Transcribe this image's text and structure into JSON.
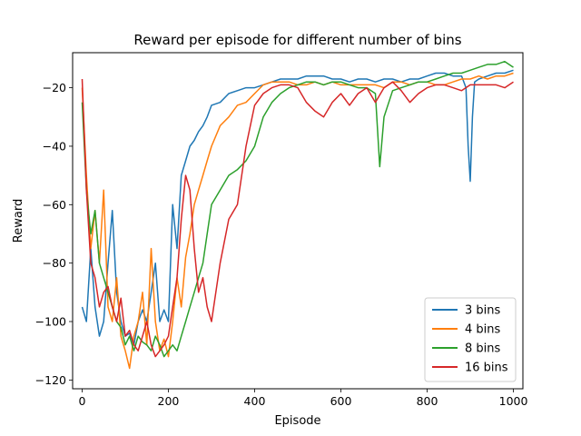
{
  "chart_data": {
    "type": "line",
    "title": "Reward per episode for different number of bins",
    "xlabel": "Episode",
    "ylabel": "Reward",
    "xlim": [
      -22,
      1022
    ],
    "ylim": [
      -123,
      -8
    ],
    "xticks": [
      0,
      200,
      400,
      600,
      800,
      1000
    ],
    "yticks": [
      -120,
      -100,
      -80,
      -60,
      -40,
      -20
    ],
    "grid": false,
    "legend_position": "lower-right",
    "series": [
      {
        "name": "3 bins",
        "color": "#1f77b4",
        "x": [
          0,
          10,
          20,
          30,
          40,
          50,
          60,
          70,
          80,
          90,
          100,
          110,
          120,
          130,
          140,
          150,
          160,
          170,
          180,
          190,
          200,
          210,
          220,
          230,
          240,
          250,
          260,
          270,
          280,
          290,
          300,
          320,
          340,
          360,
          380,
          400,
          420,
          440,
          460,
          480,
          500,
          520,
          540,
          560,
          580,
          600,
          620,
          640,
          660,
          680,
          700,
          720,
          740,
          760,
          780,
          800,
          820,
          840,
          860,
          880,
          890,
          895,
          900,
          905,
          910,
          920,
          940,
          960,
          980,
          1000
        ],
        "values": [
          -95,
          -100,
          -75,
          -95,
          -105,
          -100,
          -80,
          -62,
          -90,
          -100,
          -105,
          -104,
          -108,
          -100,
          -96,
          -100,
          -90,
          -80,
          -100,
          -96,
          -100,
          -60,
          -75,
          -50,
          -45,
          -40,
          -38,
          -35,
          -33,
          -30,
          -26,
          -25,
          -22,
          -21,
          -20,
          -20,
          -19,
          -18,
          -17,
          -17,
          -17,
          -16,
          -16,
          -16,
          -17,
          -17,
          -18,
          -17,
          -17,
          -18,
          -17,
          -17,
          -18,
          -17,
          -17,
          -16,
          -15,
          -15,
          -16,
          -16,
          -20,
          -40,
          -52,
          -30,
          -18,
          -17,
          -16,
          -15,
          -15,
          -14
        ]
      },
      {
        "name": "4 bins",
        "color": "#ff7f0e",
        "x": [
          0,
          10,
          20,
          30,
          40,
          50,
          60,
          70,
          80,
          90,
          100,
          110,
          120,
          130,
          140,
          150,
          160,
          170,
          180,
          190,
          200,
          210,
          220,
          230,
          240,
          250,
          260,
          270,
          280,
          290,
          300,
          320,
          340,
          360,
          380,
          400,
          420,
          440,
          460,
          480,
          500,
          520,
          540,
          560,
          580,
          600,
          620,
          640,
          660,
          680,
          700,
          720,
          740,
          760,
          780,
          800,
          820,
          840,
          860,
          880,
          900,
          920,
          940,
          960,
          980,
          1000
        ],
        "values": [
          -20,
          -50,
          -75,
          -62,
          -80,
          -55,
          -95,
          -100,
          -85,
          -105,
          -110,
          -116,
          -105,
          -100,
          -90,
          -108,
          -75,
          -100,
          -110,
          -106,
          -112,
          -100,
          -85,
          -95,
          -78,
          -70,
          -60,
          -55,
          -50,
          -45,
          -40,
          -33,
          -30,
          -26,
          -25,
          -22,
          -19,
          -18,
          -18,
          -18,
          -19,
          -19,
          -18,
          -19,
          -18,
          -19,
          -19,
          -19,
          -19,
          -19,
          -20,
          -18,
          -18,
          -19,
          -18,
          -18,
          -19,
          -19,
          -18,
          -17,
          -17,
          -16,
          -17,
          -16,
          -16,
          -15
        ]
      },
      {
        "name": "8 bins",
        "color": "#2ca02c",
        "x": [
          0,
          10,
          20,
          30,
          40,
          50,
          60,
          70,
          80,
          90,
          100,
          110,
          120,
          130,
          140,
          150,
          160,
          170,
          180,
          190,
          200,
          210,
          220,
          230,
          240,
          250,
          260,
          270,
          280,
          290,
          300,
          320,
          340,
          360,
          380,
          400,
          420,
          440,
          460,
          480,
          500,
          520,
          540,
          560,
          580,
          600,
          620,
          640,
          660,
          680,
          690,
          700,
          720,
          740,
          760,
          780,
          800,
          820,
          840,
          860,
          880,
          900,
          920,
          940,
          960,
          980,
          1000
        ],
        "values": [
          -25,
          -55,
          -70,
          -62,
          -80,
          -85,
          -90,
          -95,
          -100,
          -102,
          -108,
          -105,
          -110,
          -105,
          -107,
          -108,
          -110,
          -105,
          -108,
          -112,
          -110,
          -108,
          -110,
          -105,
          -100,
          -95,
          -90,
          -85,
          -80,
          -70,
          -60,
          -55,
          -50,
          -48,
          -45,
          -40,
          -30,
          -25,
          -22,
          -20,
          -19,
          -18,
          -18,
          -19,
          -18,
          -18,
          -19,
          -20,
          -20,
          -22,
          -47,
          -30,
          -21,
          -20,
          -19,
          -18,
          -18,
          -17,
          -16,
          -15,
          -15,
          -14,
          -13,
          -12,
          -12,
          -11,
          -13
        ]
      },
      {
        "name": "16 bins",
        "color": "#d62728",
        "x": [
          0,
          10,
          20,
          30,
          40,
          50,
          60,
          70,
          80,
          90,
          100,
          110,
          120,
          130,
          140,
          150,
          160,
          170,
          180,
          190,
          200,
          210,
          220,
          230,
          240,
          250,
          260,
          270,
          280,
          290,
          300,
          320,
          340,
          360,
          380,
          400,
          420,
          440,
          460,
          480,
          500,
          520,
          540,
          560,
          580,
          600,
          620,
          640,
          660,
          680,
          700,
          720,
          740,
          760,
          780,
          800,
          820,
          840,
          860,
          880,
          900,
          920,
          940,
          960,
          980,
          1000
        ],
        "values": [
          -17,
          -55,
          -80,
          -85,
          -95,
          -90,
          -88,
          -95,
          -100,
          -92,
          -105,
          -103,
          -108,
          -110,
          -105,
          -100,
          -108,
          -112,
          -110,
          -108,
          -105,
          -95,
          -85,
          -65,
          -50,
          -55,
          -75,
          -90,
          -85,
          -95,
          -100,
          -80,
          -65,
          -60,
          -40,
          -26,
          -22,
          -20,
          -19,
          -19,
          -20,
          -25,
          -28,
          -30,
          -25,
          -22,
          -26,
          -22,
          -20,
          -25,
          -20,
          -18,
          -21,
          -25,
          -22,
          -20,
          -19,
          -19,
          -20,
          -21,
          -19,
          -19,
          -19,
          -19,
          -20,
          -18
        ]
      }
    ]
  }
}
